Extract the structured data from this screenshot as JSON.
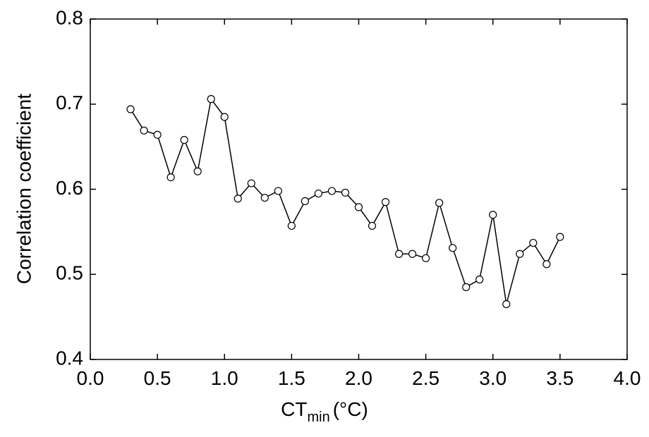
{
  "chart_data": {
    "type": "line",
    "xlabel": {
      "text": "CT",
      "subscript": "min",
      "unit": "(°C)"
    },
    "ylabel": "Correlation coefficient",
    "x": [
      0.3,
      0.4,
      0.5,
      0.6,
      0.7,
      0.8,
      0.9,
      1.0,
      1.1,
      1.2,
      1.3,
      1.4,
      1.5,
      1.6,
      1.7,
      1.8,
      1.9,
      2.0,
      2.1,
      2.2,
      2.3,
      2.4,
      2.5,
      2.6,
      2.7,
      2.8,
      2.9,
      3.0,
      3.1,
      3.2,
      3.3,
      3.4,
      3.5
    ],
    "series": [
      {
        "color": "#000000",
        "values": [
          0.694,
          0.669,
          0.664,
          0.614,
          0.658,
          0.621,
          0.706,
          0.685,
          0.589,
          0.607,
          0.59,
          0.598,
          0.557,
          0.586,
          0.595,
          0.598,
          0.596,
          0.579,
          0.557,
          0.585,
          0.524,
          0.524,
          0.519,
          0.584,
          0.531,
          0.485,
          0.494,
          0.57,
          0.465,
          0.524,
          0.537,
          0.512,
          0.544
        ]
      }
    ],
    "xlim": [
      0,
      4
    ],
    "xticks": [
      {
        "value": 0,
        "label": "0.0"
      },
      0.5,
      {
        "value": 1,
        "label": "1.0"
      },
      1.5,
      {
        "value": 2,
        "label": "2.0"
      },
      2.5,
      {
        "value": 3,
        "label": "3.0"
      },
      3.5,
      {
        "value": 4,
        "label": "4.0"
      }
    ],
    "ylim": [
      0.4,
      0.8
    ],
    "yticks": [
      0.4,
      0.5,
      0.6,
      0.7,
      0.8
    ],
    "grid": false,
    "marker": "open-circle"
  }
}
